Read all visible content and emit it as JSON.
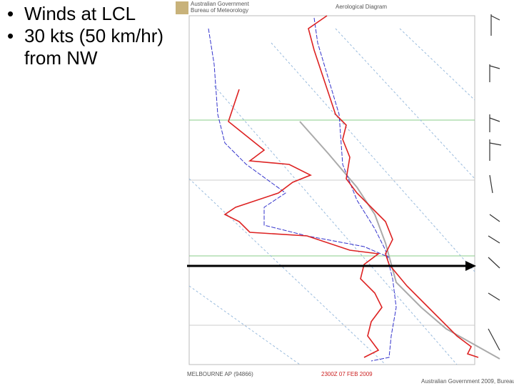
{
  "slide": {
    "bullets": [
      "Winds at LCL",
      "30 kts (50 km/hr) from NW"
    ]
  },
  "diagram": {
    "agency": [
      "Australian Government",
      "Bureau of Meteorology"
    ],
    "title": "Aerological Diagram",
    "station": "MELBOURNE AP (94866)",
    "time": "2300Z 07 FEB 2009",
    "credit": "Australian Government 2009, Bureau"
  }
}
